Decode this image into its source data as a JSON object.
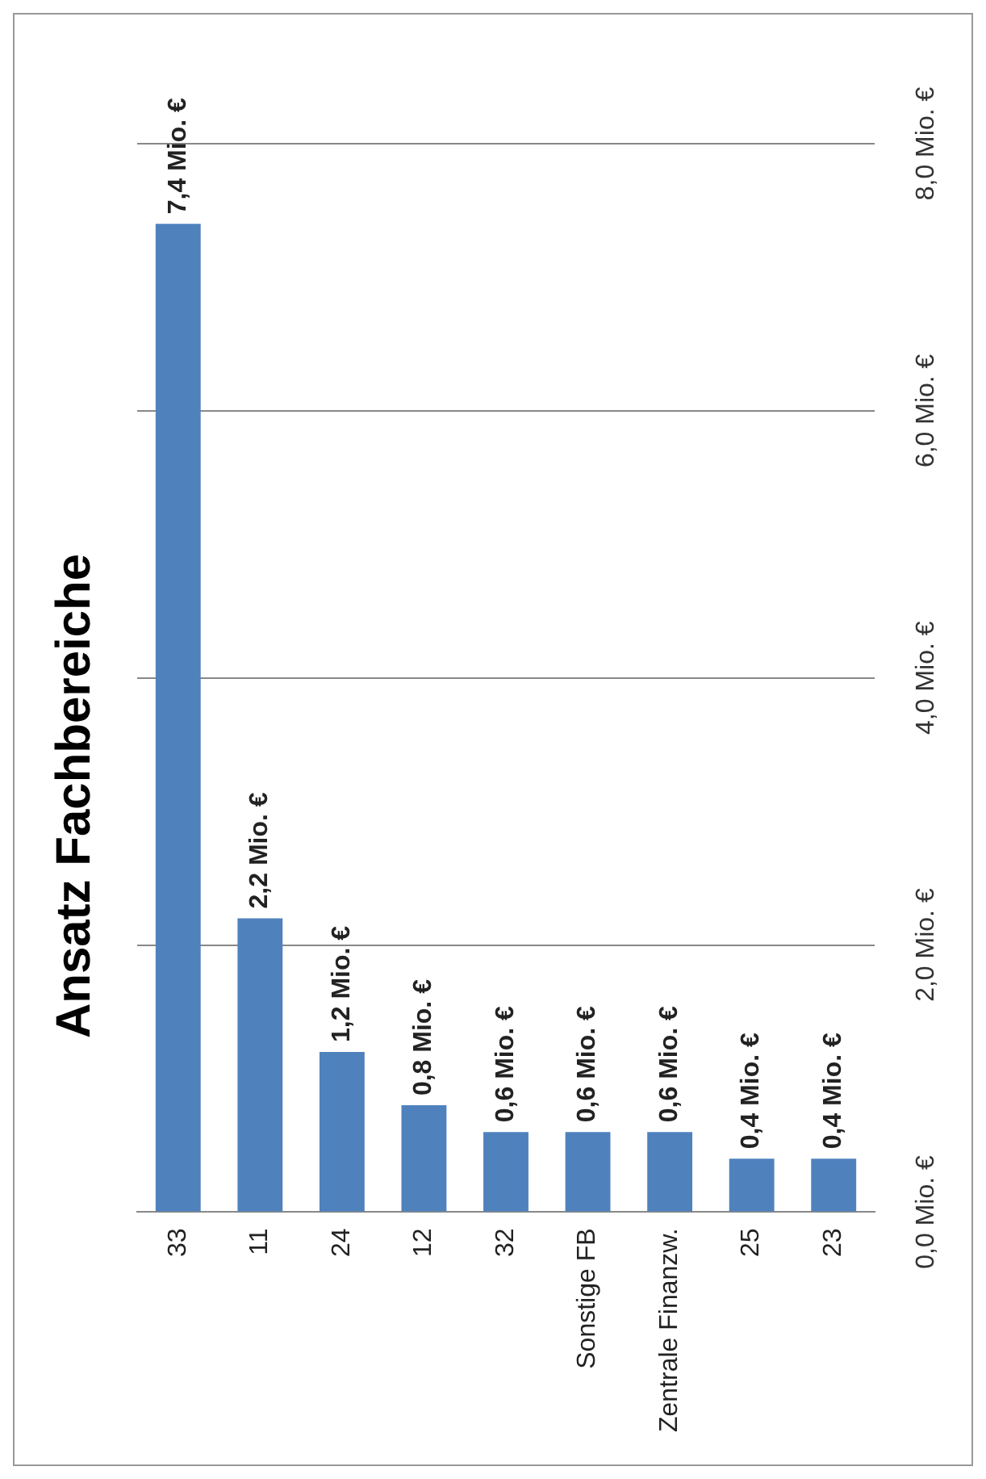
{
  "chart_data": {
    "type": "bar",
    "title": "Ansatz Fachbereiche",
    "categories": [
      "33",
      "11",
      "24",
      "12",
      "32",
      "Sonstige FB",
      "Zentrale Finanzw.",
      "25",
      "23"
    ],
    "values": [
      7.4,
      2.2,
      1.2,
      0.8,
      0.6,
      0.6,
      0.6,
      0.4,
      0.4
    ],
    "value_labels": [
      "7,4 Mio. €",
      "2,2 Mio. €",
      "1,2 Mio. €",
      "0,8 Mio. €",
      "0,6 Mio. €",
      "0,6 Mio. €",
      "0,6 Mio. €",
      "0,4 Mio. €",
      "0,4 Mio. €"
    ],
    "color": "#4f81bd",
    "ylim": [
      0,
      8
    ],
    "yticks": [
      {
        "value": 0,
        "label": "0,0 Mio. €"
      },
      {
        "value": 2,
        "label": "2,0 Mio. €"
      },
      {
        "value": 4,
        "label": "4,0 Mio. €"
      },
      {
        "value": 6,
        "label": "6,0 Mio. €"
      },
      {
        "value": 8,
        "label": "8,0 Mio. €"
      }
    ],
    "grid": "y"
  }
}
